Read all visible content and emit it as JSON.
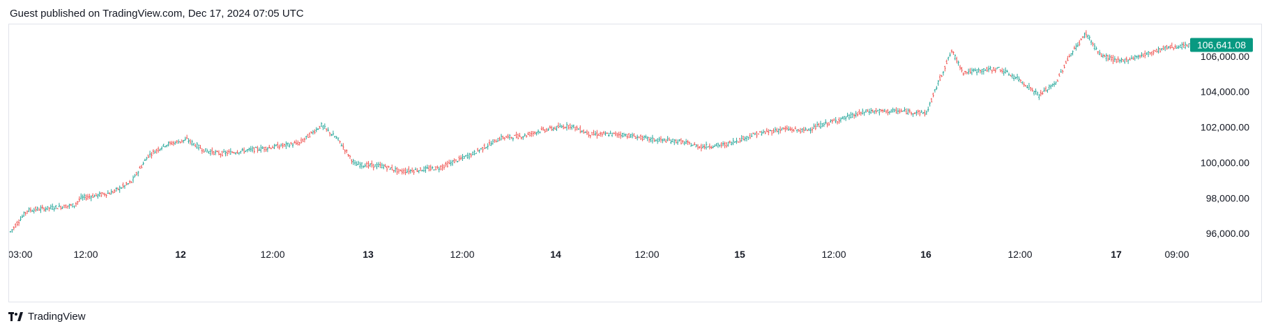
{
  "header": {
    "text": "Guest published on TradingView.com, Dec 17, 2024 07:05 UTC"
  },
  "footer": {
    "brand": "TradingView"
  },
  "colors": {
    "up": "#26a69a",
    "down": "#ef5350",
    "price_badge": "#089981",
    "grid_text": "#131722"
  },
  "chart_data": {
    "type": "ohlc",
    "y_ticks": [
      96000,
      98000,
      100000,
      102000,
      104000,
      106000
    ],
    "y_tick_labels": [
      "96,000.00",
      "98,000.00",
      "100,000.00",
      "102,000.00",
      "104,000.00",
      "106,000.00"
    ],
    "ylim": [
      95300,
      107800
    ],
    "x_tick_labels": [
      "03:00",
      "12:00",
      "12",
      "12:00",
      "13",
      "12:00",
      "14",
      "12:00",
      "15",
      "12:00",
      "16",
      "12:00",
      "17",
      "09:00"
    ],
    "x_tick_bold": [
      false,
      false,
      true,
      false,
      true,
      false,
      true,
      false,
      true,
      false,
      true,
      false,
      true,
      false
    ],
    "last_price": 106641.08,
    "last_price_label": "106,641.08",
    "trend_points": [
      [
        0,
        96100
      ],
      [
        10,
        97300
      ],
      [
        38,
        97600
      ],
      [
        42,
        98000
      ],
      [
        60,
        98300
      ],
      [
        72,
        98900
      ],
      [
        82,
        100400
      ],
      [
        92,
        101000
      ],
      [
        105,
        101300
      ],
      [
        115,
        100700
      ],
      [
        125,
        100500
      ],
      [
        150,
        100800
      ],
      [
        172,
        101100
      ],
      [
        185,
        102100
      ],
      [
        195,
        101300
      ],
      [
        205,
        99900
      ],
      [
        222,
        99800
      ],
      [
        232,
        99500
      ],
      [
        255,
        99700
      ],
      [
        275,
        100500
      ],
      [
        292,
        101400
      ],
      [
        305,
        101500
      ],
      [
        315,
        101800
      ],
      [
        333,
        102100
      ],
      [
        345,
        101600
      ],
      [
        363,
        101600
      ],
      [
        382,
        101300
      ],
      [
        398,
        101200
      ],
      [
        410,
        100900
      ],
      [
        425,
        101000
      ],
      [
        443,
        101600
      ],
      [
        460,
        101900
      ],
      [
        472,
        101800
      ],
      [
        492,
        102400
      ],
      [
        510,
        102900
      ],
      [
        530,
        102900
      ],
      [
        545,
        102800
      ],
      [
        552,
        104500
      ],
      [
        560,
        106300
      ],
      [
        567,
        105100
      ],
      [
        588,
        105300
      ],
      [
        600,
        104700
      ],
      [
        612,
        103800
      ],
      [
        622,
        104500
      ],
      [
        630,
        106000
      ],
      [
        640,
        107300
      ],
      [
        648,
        106100
      ],
      [
        660,
        105700
      ],
      [
        675,
        106100
      ],
      [
        688,
        106500
      ],
      [
        705,
        106641
      ]
    ]
  }
}
